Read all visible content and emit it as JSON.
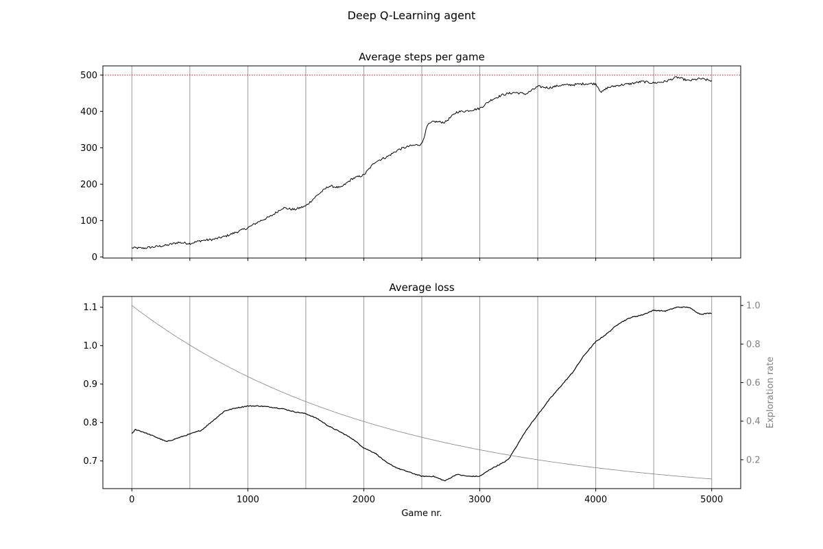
{
  "suptitle": "Deep Q-Learning agent",
  "chart_data": [
    {
      "type": "line",
      "title": "Average steps per game",
      "xlabel": "",
      "ylabel": "",
      "xlim": [
        -250,
        5250
      ],
      "ylim": [
        -3,
        525
      ],
      "xticks": [
        0,
        500,
        1000,
        1500,
        2000,
        2500,
        3000,
        3500,
        4000,
        4500,
        5000
      ],
      "show_xtick_labels": false,
      "yticks": [
        0,
        100,
        200,
        300,
        400,
        500
      ],
      "ytick_labels": [
        "0",
        "100",
        "200",
        "300",
        "400",
        "500"
      ],
      "vlines": [
        0,
        500,
        1000,
        1500,
        2000,
        2500,
        3000,
        3500,
        4000,
        4500,
        5000
      ],
      "hline": {
        "y": 500,
        "color": "#ff0000",
        "style": "dotted"
      },
      "series": [
        {
          "color": "#000000",
          "x": [
            0,
            100,
            200,
            300,
            400,
            500,
            600,
            700,
            800,
            900,
            1000,
            1100,
            1200,
            1300,
            1400,
            1500,
            1600,
            1700,
            1800,
            1900,
            2000,
            2100,
            2200,
            2300,
            2400,
            2500,
            2550,
            2600,
            2700,
            2800,
            2900,
            3000,
            3100,
            3200,
            3300,
            3400,
            3500,
            3600,
            3700,
            3800,
            3900,
            4000,
            4050,
            4100,
            4200,
            4300,
            4400,
            4500,
            4600,
            4700,
            4800,
            4900,
            5000
          ],
          "y": [
            25,
            24,
            28,
            32,
            40,
            37,
            45,
            48,
            56,
            68,
            80,
            98,
            112,
            135,
            130,
            140,
            170,
            195,
            190,
            215,
            225,
            262,
            275,
            295,
            305,
            310,
            362,
            372,
            370,
            398,
            402,
            408,
            432,
            446,
            452,
            448,
            468,
            465,
            472,
            473,
            476,
            476,
            452,
            465,
            472,
            476,
            482,
            478,
            482,
            494,
            484,
            490,
            484
          ]
        }
      ],
      "grid": false
    },
    {
      "type": "line",
      "title": "Average loss",
      "xlabel": "Game nr.",
      "ylabel": "",
      "y2label": "Exploration rate",
      "xlim": [
        -250,
        5250
      ],
      "ylim": [
        0.628,
        1.128
      ],
      "y2lim": [
        0.0502,
        1.0468
      ],
      "xticks": [
        0,
        1000,
        2000,
        3000,
        4000,
        5000
      ],
      "xtick_labels": [
        "0",
        "1000",
        "2000",
        "3000",
        "4000",
        "5000"
      ],
      "yticks": [
        0.7,
        0.8,
        0.9,
        1.0,
        1.1
      ],
      "ytick_labels": [
        "0.7",
        "0.8",
        "0.9",
        "1.0",
        "1.1"
      ],
      "y2ticks": [
        0.2,
        0.4,
        0.6,
        0.8,
        1.0
      ],
      "y2tick_labels": [
        "0.2",
        "0.4",
        "0.6",
        "0.8",
        "1.0"
      ],
      "vlines": [
        0,
        500,
        1000,
        1500,
        2000,
        2500,
        3000,
        3500,
        4000,
        4500,
        5000
      ],
      "series": [
        {
          "axis": "left",
          "color": "#000000",
          "x": [
            0,
            30,
            100,
            200,
            300,
            400,
            500,
            600,
            700,
            800,
            900,
            1000,
            1100,
            1200,
            1300,
            1400,
            1500,
            1600,
            1700,
            1800,
            1900,
            2000,
            2100,
            2200,
            2300,
            2400,
            2500,
            2600,
            2700,
            2800,
            2900,
            3000,
            3100,
            3200,
            3250,
            3300,
            3400,
            3500,
            3600,
            3700,
            3800,
            3900,
            4000,
            4100,
            4200,
            4300,
            4400,
            4500,
            4600,
            4700,
            4800,
            4900,
            5000
          ],
          "y": [
            0.77,
            0.782,
            0.775,
            0.763,
            0.75,
            0.76,
            0.77,
            0.78,
            0.805,
            0.83,
            0.838,
            0.843,
            0.843,
            0.84,
            0.836,
            0.828,
            0.823,
            0.81,
            0.79,
            0.775,
            0.758,
            0.734,
            0.72,
            0.695,
            0.68,
            0.67,
            0.66,
            0.66,
            0.648,
            0.665,
            0.66,
            0.66,
            0.68,
            0.695,
            0.705,
            0.73,
            0.78,
            0.82,
            0.86,
            0.895,
            0.93,
            0.975,
            1.01,
            1.032,
            1.058,
            1.073,
            1.08,
            1.092,
            1.09,
            1.1,
            1.1,
            1.082,
            1.085
          ]
        },
        {
          "axis": "right",
          "color": "#808080",
          "decay": {
            "start": 1.0,
            "rate": 0.99954
          },
          "x_range": [
            0,
            5000
          ]
        }
      ],
      "grid": false
    }
  ]
}
